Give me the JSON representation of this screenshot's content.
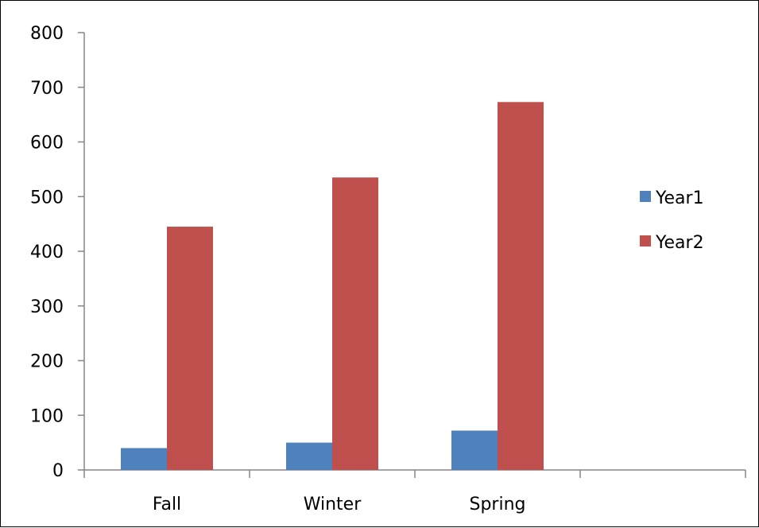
{
  "chart_data": {
    "type": "bar",
    "categories": [
      "Fall",
      "Winter",
      "Spring",
      ""
    ],
    "series": [
      {
        "name": "Year1",
        "color": "#4F81BD",
        "values": [
          40,
          50,
          72,
          null
        ]
      },
      {
        "name": "Year2",
        "color": "#C0504D",
        "values": [
          445,
          535,
          673,
          null
        ]
      }
    ],
    "ylim": [
      0,
      800
    ],
    "yticks": [
      0,
      100,
      200,
      300,
      400,
      500,
      600,
      700,
      800
    ],
    "grid": false,
    "legend_position": "right"
  }
}
